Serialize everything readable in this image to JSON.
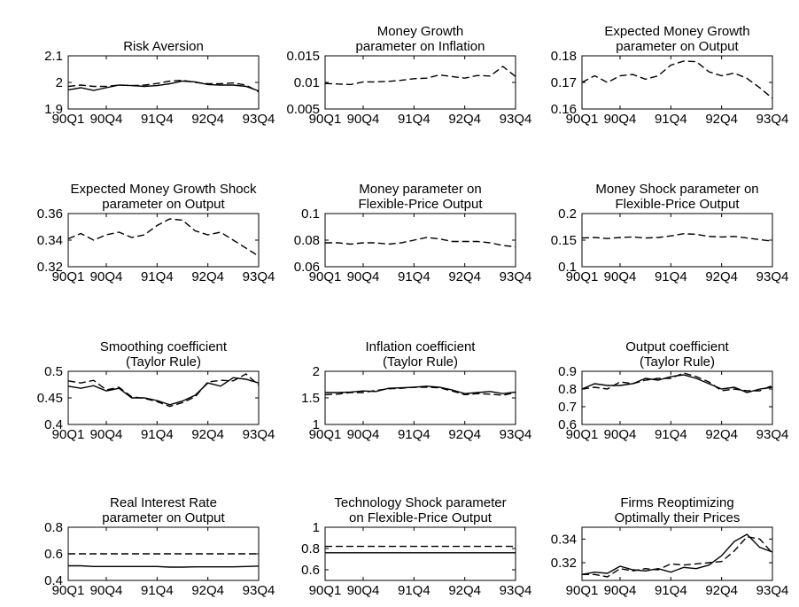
{
  "chart_data": [
    {
      "type": "line",
      "title": [
        "Risk Aversion"
      ],
      "ylim": [
        1.9,
        2.1
      ],
      "yticks": [
        "1.9",
        "2",
        "2.1"
      ],
      "xticks": [
        "90Q1",
        "90Q4",
        "91Q4",
        "92Q4",
        "93Q4"
      ],
      "series": [
        {
          "style": "solid",
          "values": [
            1.972,
            1.98,
            1.97,
            1.98,
            1.99,
            1.988,
            1.985,
            1.988,
            1.995,
            2.005,
            2.002,
            1.992,
            1.99,
            1.99,
            1.985,
            1.968
          ]
        },
        {
          "style": "dashed",
          "values": [
            1.985,
            1.99,
            1.985,
            1.985,
            1.99,
            1.988,
            1.99,
            1.996,
            2.005,
            2.008,
            2.0,
            1.995,
            1.995,
            1.998,
            1.99,
            1.965
          ]
        }
      ]
    },
    {
      "type": "line",
      "title": [
        "Money Growth",
        "parameter on Inflation"
      ],
      "ylim": [
        0.005,
        0.015
      ],
      "yticks": [
        "0.005",
        "0.01",
        "0.015"
      ],
      "xticks": [
        "90Q1",
        "90Q4",
        "91Q4",
        "92Q4",
        "93Q4"
      ],
      "series": [
        {
          "style": "dashed",
          "values": [
            0.0098,
            0.0097,
            0.0096,
            0.0101,
            0.0101,
            0.0102,
            0.0104,
            0.0107,
            0.0108,
            0.0114,
            0.0111,
            0.0108,
            0.0113,
            0.0112,
            0.013,
            0.0111
          ]
        }
      ]
    },
    {
      "type": "line",
      "title": [
        "Expected Money Growth",
        "parameter on Output"
      ],
      "ylim": [
        0.16,
        0.18
      ],
      "yticks": [
        "0.16",
        "0.17",
        "0.18"
      ],
      "xticks": [
        "90Q1",
        "90Q4",
        "91Q4",
        "92Q4",
        "93Q4"
      ],
      "series": [
        {
          "style": "dashed",
          "values": [
            0.17,
            0.1725,
            0.17,
            0.1725,
            0.173,
            0.1712,
            0.1725,
            0.1765,
            0.178,
            0.1778,
            0.174,
            0.1725,
            0.1735,
            0.1715,
            0.168,
            0.164
          ]
        }
      ]
    },
    {
      "type": "line",
      "title": [
        "Expected Money Growth Shock",
        "parameter on Output"
      ],
      "ylim": [
        0.32,
        0.36
      ],
      "yticks": [
        "0.32",
        "0.34",
        "0.36"
      ],
      "xticks": [
        "90Q1",
        "90Q4",
        "91Q4",
        "92Q4",
        "93Q4"
      ],
      "series": [
        {
          "style": "dashed",
          "values": [
            0.341,
            0.345,
            0.34,
            0.344,
            0.346,
            0.342,
            0.344,
            0.351,
            0.356,
            0.355,
            0.347,
            0.344,
            0.346,
            0.34,
            0.334,
            0.328
          ]
        }
      ]
    },
    {
      "type": "line",
      "title": [
        "Money parameter on",
        "Flexible-Price Output"
      ],
      "ylim": [
        0.06,
        0.1
      ],
      "yticks": [
        "0.06",
        "0.08",
        "0.1"
      ],
      "xticks": [
        "90Q1",
        "90Q4",
        "91Q4",
        "92Q4",
        "93Q4"
      ],
      "series": [
        {
          "style": "dashed",
          "values": [
            0.078,
            0.078,
            0.077,
            0.078,
            0.078,
            0.077,
            0.078,
            0.08,
            0.082,
            0.081,
            0.079,
            0.079,
            0.079,
            0.078,
            0.076,
            0.075
          ]
        }
      ]
    },
    {
      "type": "line",
      "title": [
        "Money Shock parameter on",
        "Flexible-Price Output"
      ],
      "ylim": [
        0.1,
        0.2
      ],
      "yticks": [
        "0.1",
        "0.15",
        "0.2"
      ],
      "xticks": [
        "90Q1",
        "90Q4",
        "91Q4",
        "92Q4",
        "93Q4"
      ],
      "series": [
        {
          "style": "dashed",
          "values": [
            0.154,
            0.155,
            0.153,
            0.155,
            0.156,
            0.154,
            0.155,
            0.158,
            0.162,
            0.161,
            0.157,
            0.156,
            0.157,
            0.154,
            0.151,
            0.148
          ]
        }
      ]
    },
    {
      "type": "line",
      "title": [
        "Smoothing coefficient",
        "(Taylor Rule)"
      ],
      "ylim": [
        0.4,
        0.5
      ],
      "yticks": [
        "0.4",
        "0.45",
        "0.5"
      ],
      "xticks": [
        "90Q1",
        "90Q4",
        "91Q4",
        "92Q4",
        "93Q4"
      ],
      "series": [
        {
          "style": "solid",
          "values": [
            0.472,
            0.468,
            0.473,
            0.463,
            0.468,
            0.45,
            0.45,
            0.445,
            0.437,
            0.444,
            0.455,
            0.478,
            0.472,
            0.488,
            0.485,
            0.478
          ]
        },
        {
          "style": "dashed",
          "values": [
            0.482,
            0.478,
            0.483,
            0.465,
            0.47,
            0.452,
            0.449,
            0.443,
            0.434,
            0.441,
            0.452,
            0.48,
            0.483,
            0.482,
            0.495,
            0.474
          ]
        }
      ]
    },
    {
      "type": "line",
      "title": [
        "Inflation coefficient",
        "(Taylor Rule)"
      ],
      "ylim": [
        1,
        2
      ],
      "yticks": [
        "1",
        "1.5",
        "2"
      ],
      "xticks": [
        "90Q1",
        "90Q4",
        "91Q4",
        "92Q4",
        "93Q4"
      ],
      "series": [
        {
          "style": "solid",
          "values": [
            1.6,
            1.6,
            1.61,
            1.63,
            1.62,
            1.68,
            1.69,
            1.7,
            1.72,
            1.7,
            1.65,
            1.58,
            1.6,
            1.62,
            1.58,
            1.61
          ]
        },
        {
          "style": "dashed",
          "values": [
            1.56,
            1.57,
            1.6,
            1.6,
            1.64,
            1.67,
            1.68,
            1.7,
            1.7,
            1.69,
            1.63,
            1.56,
            1.58,
            1.57,
            1.55,
            1.6
          ]
        }
      ]
    },
    {
      "type": "line",
      "title": [
        "Output coefficient",
        "(Taylor Rule)"
      ],
      "ylim": [
        0.6,
        0.9
      ],
      "yticks": [
        "0.6",
        "0.7",
        "0.8",
        "0.9"
      ],
      "xticks": [
        "90Q1",
        "90Q4",
        "91Q4",
        "92Q4",
        "93Q4"
      ],
      "series": [
        {
          "style": "solid",
          "values": [
            0.8,
            0.83,
            0.82,
            0.82,
            0.83,
            0.86,
            0.85,
            0.87,
            0.88,
            0.86,
            0.83,
            0.8,
            0.81,
            0.78,
            0.8,
            0.81
          ]
        },
        {
          "style": "dashed",
          "values": [
            0.8,
            0.81,
            0.8,
            0.84,
            0.83,
            0.85,
            0.86,
            0.86,
            0.89,
            0.87,
            0.84,
            0.79,
            0.8,
            0.79,
            0.79,
            0.82
          ]
        }
      ]
    },
    {
      "type": "line",
      "title": [
        "Real Interest Rate",
        "parameter on Output"
      ],
      "ylim": [
        0.4,
        0.8
      ],
      "yticks": [
        "0.4",
        "0.6",
        "0.8"
      ],
      "xticks": [
        "90Q1",
        "90Q4",
        "91Q4",
        "92Q4",
        "93Q4"
      ],
      "series": [
        {
          "style": "solid",
          "values": [
            0.51,
            0.51,
            0.505,
            0.505,
            0.505,
            0.505,
            0.505,
            0.505,
            0.5,
            0.5,
            0.502,
            0.502,
            0.502,
            0.502,
            0.505,
            0.508
          ]
        },
        {
          "style": "dashed",
          "values": [
            0.6,
            0.6,
            0.6,
            0.6,
            0.6,
            0.6,
            0.6,
            0.6,
            0.6,
            0.6,
            0.6,
            0.6,
            0.6,
            0.6,
            0.6,
            0.6
          ]
        }
      ]
    },
    {
      "type": "line",
      "title": [
        "Technology Shock parameter",
        "on Flexible-Price Output"
      ],
      "ylim": [
        0.5,
        1
      ],
      "yticks": [
        "0.6",
        "0.8",
        "1"
      ],
      "xticks": [
        "90Q1",
        "90Q4",
        "91Q4",
        "92Q4",
        "93Q4"
      ],
      "series": [
        {
          "style": "solid",
          "values": [
            0.76,
            0.76,
            0.76,
            0.76,
            0.76,
            0.76,
            0.76,
            0.76,
            0.76,
            0.76,
            0.76,
            0.76,
            0.76,
            0.76,
            0.76,
            0.76
          ]
        },
        {
          "style": "dashed",
          "values": [
            0.82,
            0.82,
            0.82,
            0.82,
            0.82,
            0.82,
            0.82,
            0.82,
            0.82,
            0.82,
            0.82,
            0.82,
            0.82,
            0.82,
            0.82,
            0.82
          ]
        }
      ]
    },
    {
      "type": "line",
      "title": [
        "Firms Reoptimizing",
        "Optimally their Prices"
      ],
      "ylim": [
        0.305,
        0.35
      ],
      "yticks": [
        "0.32",
        "0.34"
      ],
      "xticks": [
        "90Q1",
        "90Q4",
        "91Q4",
        "92Q4",
        "93Q4"
      ],
      "series": [
        {
          "style": "solid",
          "values": [
            0.31,
            0.312,
            0.311,
            0.317,
            0.314,
            0.313,
            0.315,
            0.312,
            0.316,
            0.315,
            0.318,
            0.326,
            0.338,
            0.344,
            0.333,
            0.329
          ]
        },
        {
          "style": "dashed",
          "values": [
            0.31,
            0.31,
            0.308,
            0.315,
            0.313,
            0.315,
            0.314,
            0.319,
            0.318,
            0.319,
            0.32,
            0.321,
            0.33,
            0.342,
            0.34,
            0.328
          ]
        }
      ]
    }
  ]
}
